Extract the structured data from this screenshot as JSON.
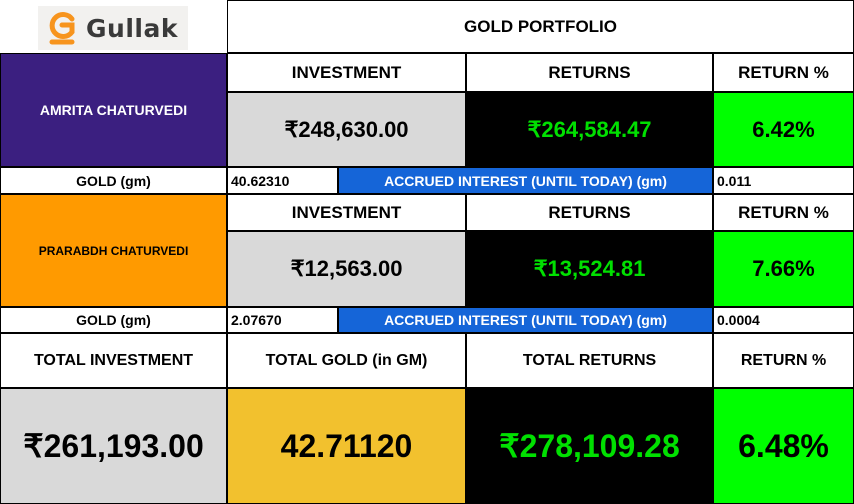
{
  "brand": {
    "name": "Gullak",
    "logo_color": "#f7941d"
  },
  "title": "GOLD PORTFOLIO",
  "headers": {
    "investment": "INVESTMENT",
    "returns": "RETURNS",
    "return_pct": "RETURN %"
  },
  "labels": {
    "gold_gm": "GOLD (gm)",
    "accrued_interest": "ACCRUED INTEREST (UNTIL TODAY) (gm)"
  },
  "persons": [
    {
      "name": "AMRITA CHATURVEDI",
      "investment": "₹248,630.00",
      "returns": "₹264,584.47",
      "return_pct": "6.42%",
      "gold_gm": "40.62310",
      "accrued_interest": "0.011",
      "color": "#3b1f80"
    },
    {
      "name": "PRARABDH CHATURVEDI",
      "investment": "₹12,563.00",
      "returns": "₹13,524.81",
      "return_pct": "7.66%",
      "gold_gm": "2.07670",
      "accrued_interest": "0.0004",
      "color": "#ff9a00"
    }
  ],
  "totals": {
    "investment_label": "TOTAL INVESTMENT",
    "gold_label": "TOTAL GOLD (in GM)",
    "returns_label": "TOTAL RETURNS",
    "return_pct_label": "RETURN %",
    "investment": "₹261,193.00",
    "gold": "42.71120",
    "returns": "₹278,109.28",
    "return_pct": "6.48%"
  },
  "colors": {
    "green": "#00ff00",
    "green_text": "#00e000",
    "grey": "#d9d9d9",
    "black": "#000000",
    "blue": "#1565d8",
    "gold": "#f2c12e"
  }
}
